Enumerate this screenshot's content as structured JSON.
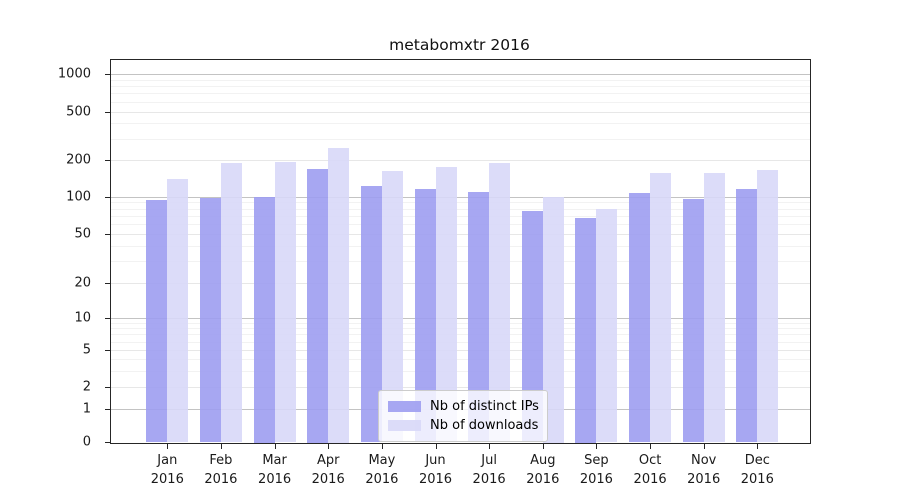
{
  "chart_data": {
    "type": "bar",
    "title": "metabomxtr 2016",
    "x_tick_months": [
      "Jan",
      "Feb",
      "Mar",
      "Apr",
      "May",
      "Jun",
      "Jul",
      "Aug",
      "Sep",
      "Oct",
      "Nov",
      "Dec"
    ],
    "x_tick_year": "2016",
    "y_ticks": [
      0,
      1,
      2,
      5,
      10,
      20,
      50,
      100,
      200,
      500,
      1000
    ],
    "y_scale": "symlog",
    "ylim": [
      0,
      1500
    ],
    "grid": true,
    "legend_position": "bottom-center",
    "series": [
      {
        "name": "Nb of distinct IPs",
        "color": "#9d9df1",
        "values": [
          94,
          97,
          100,
          168,
          121,
          115,
          109,
          77,
          68,
          106,
          96,
          116
        ]
      },
      {
        "name": "Nb of downloads",
        "color": "#d8d8f8",
        "values": [
          138,
          187,
          192,
          250,
          162,
          173,
          187,
          99,
          80,
          157,
          156,
          165
        ]
      }
    ]
  }
}
